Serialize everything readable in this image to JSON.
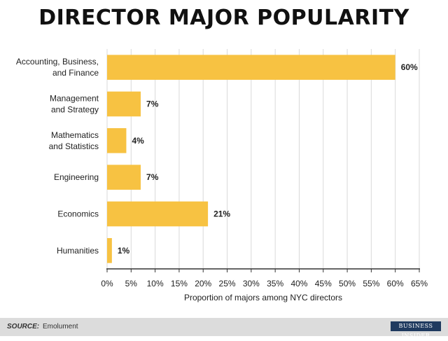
{
  "chart_data": {
    "type": "bar",
    "orientation": "horizontal",
    "title": "DIRECTOR MAJOR POPULARITY",
    "xlabel": "Proportion of majors among NYC directors",
    "categories": [
      [
        "Accounting, Business,",
        "and Finance"
      ],
      [
        "Management",
        "and Strategy"
      ],
      [
        "Mathematics",
        "and Statistics"
      ],
      [
        "Engineering"
      ],
      [
        "Economics"
      ],
      [
        "Humanities"
      ]
    ],
    "values": [
      60,
      7,
      4,
      7,
      21,
      1
    ],
    "value_labels": [
      "60%",
      "7%",
      "4%",
      "7%",
      "21%",
      "1%"
    ],
    "xlim": [
      0,
      65
    ],
    "ticks": [
      0,
      5,
      10,
      15,
      20,
      25,
      30,
      35,
      40,
      45,
      50,
      55,
      60,
      65
    ],
    "tick_labels": [
      "0%",
      "5%",
      "10%",
      "15%",
      "20%",
      "25%",
      "30%",
      "35%",
      "40%",
      "45%",
      "50%",
      "55%",
      "60%",
      "65%"
    ],
    "grid": true,
    "bar_color": "#f7c242",
    "grid_color": "#d9d9d9"
  },
  "footer": {
    "source_label": "SOURCE:",
    "source_value": "Emolument",
    "brand": "BUSINESS INSIDER"
  }
}
